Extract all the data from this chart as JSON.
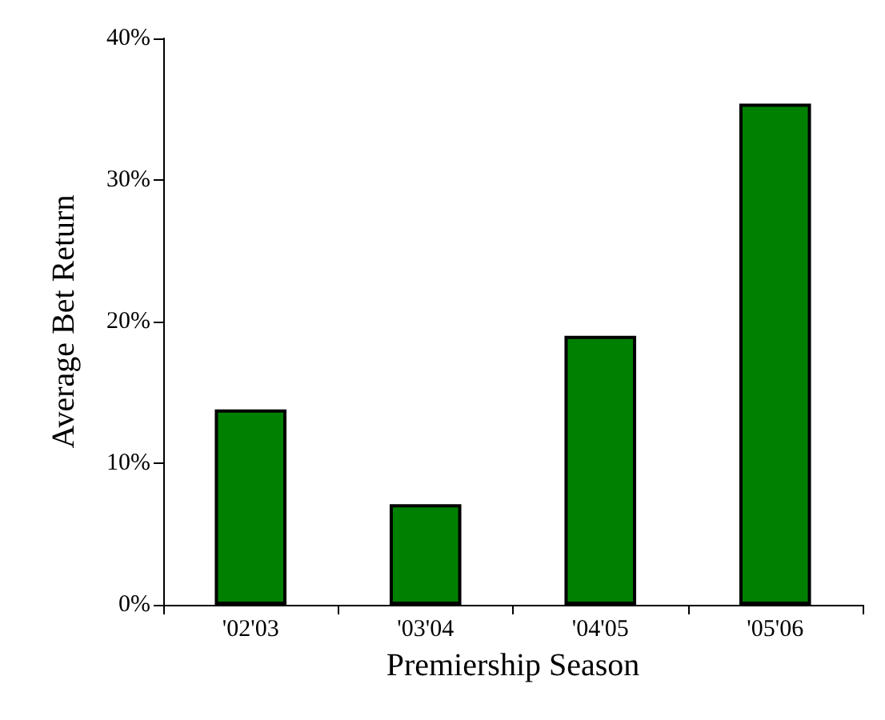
{
  "chart_data": {
    "type": "bar",
    "xlabel": "Premiership Season",
    "ylabel": "Average Bet Return",
    "categories": [
      "'02'03",
      "'03'04",
      "'04'05",
      "'05'06"
    ],
    "values": [
      13.8,
      7.1,
      19.0,
      35.4
    ],
    "color": "#008000",
    "ylim": [
      0,
      40
    ],
    "yticks": [
      {
        "value": 0,
        "label": "0%"
      },
      {
        "value": 10,
        "label": "10%"
      },
      {
        "value": 20,
        "label": "20%"
      },
      {
        "value": 30,
        "label": "30%"
      },
      {
        "value": 40,
        "label": "40%"
      }
    ],
    "grid": false
  }
}
